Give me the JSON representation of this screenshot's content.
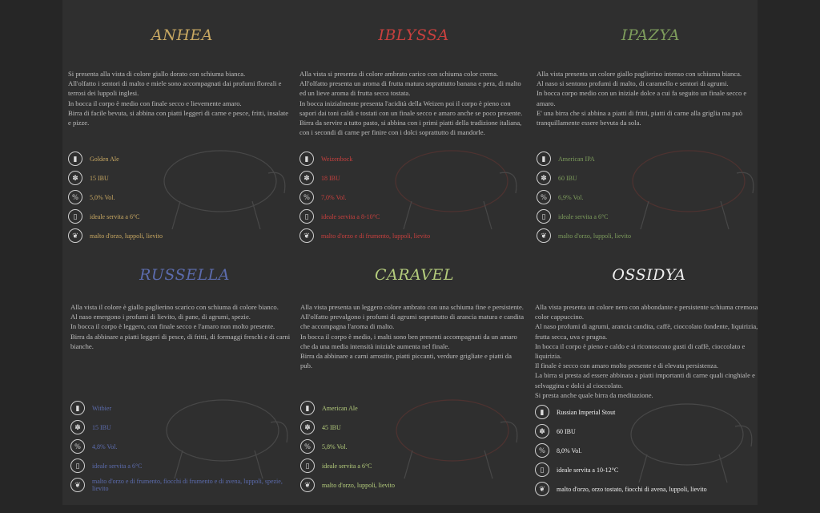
{
  "beers": [
    {
      "name": "ANHEA",
      "color": "#c8a862",
      "description": "Si presenta alla vista di colore giallo dorato con schiuma bianca.\nAll'olfatto i sentori di malto e miele sono accompagnati dai profumi floreali e  terrosi dei luppoli inglesi.\nIn bocca il corpo è medio con finale secco e lievemente amaro.\nBirra di facile bevuta, si abbina con piatti leggeri di carne e pesce, fritti, insalate e pizze.",
      "specs": {
        "style": "Golden Ale",
        "ibu": "15 IBU",
        "abv": "5,0% Vol.",
        "serving": "ideale servita  a 6°C",
        "ingredients": "malto d'orzo, luppoli, lievito"
      }
    },
    {
      "name": "IBLYSSA",
      "color": "#c8403e",
      "description": "Alla vista si presenta di colore ambrato carico con schiuma color crema.\nAll'olfatto presenta un aroma di frutta matura soprattutto banana e pera, di malto ed un lieve aroma di frutta secca tostata.\nIn bocca inizialmente presenta l'acidità della Weizen poi il corpo è pieno con sapori dai toni caldi e tostati con un finale secco e amaro anche se poco presente.\nBirra da servire a tutto pasto, si abbina con i primi piatti della tradizione italiana, con i secondi di carne per finire con i dolci soprattutto di mandorle.",
      "specs": {
        "style": "Weizenbock",
        "ibu": "18 IBU",
        "abv": "7,0% Vol.",
        "serving": "ideale servita a 8-10°C",
        "ingredients": "malto d'orzo e di frumento, luppoli, lievito"
      }
    },
    {
      "name": "IPAZYA",
      "color": "#7d9c5c",
      "description": "Alla vista presenta un  colore giallo paglierino intenso con schiuma bianca.\nAl naso si sentono profumi di malto, di caramello e sentori di agrumi.\nIn bocca corpo medio con un iniziale dolce a cui fa seguito un finale secco e  amaro.\nE' una birra che si abbina a piatti di fritti, piatti di carne alla griglia ma può  tranquillamente essere bevuta da sola.",
      "specs": {
        "style": "American IPA",
        "ibu": "60 IBU",
        "abv": "6,9% Vol.",
        "serving": "ideale servita a 6°C",
        "ingredients": "malto d'orzo, luppoli, lievito"
      }
    },
    {
      "name": "RUSSELLA",
      "color": "#5c6cae",
      "description": "Alla vista il colore è giallo paglierino scarico con schiuma di colore bianco.\nAl naso emergono i profumi di lievito, di pane, di agrumi, spezie.\nIn bocca il corpo è leggero, con finale secco e l'amaro non molto presente.\nBirra da abbinare a piatti leggeri di pesce, di fritti, di formaggi freschi e di carni bianche.",
      "specs": {
        "style": "Witbier",
        "ibu": "15 IBU",
        "abv": "4,8% Vol.",
        "serving": "ideale servita a 6°C",
        "ingredients": "malto d'orzo e di frumento, fiocchi di frumento e di avena, luppoli, spezie, lievito"
      }
    },
    {
      "name": "CARAVEL",
      "color": "#b4cc7c",
      "description": "Alla vista presenta  un leggero colore ambrato con una schiuma fine e persistente.\nAll'olfatto prevalgono i  profumi di agrumi soprattutto di arancia matura e  candita che accompagna l'aroma di malto.\nIn bocca il corpo è  medio, i malti sono ben presenti accompagnati da un amaro che da una media intensità iniziale aumenta nel finale.\nBirra da abbinare a carni arrostite, piatti piccanti, verdure grigliate e piatti da pub.",
      "specs": {
        "style": "American Ale",
        "ibu": "45 IBU",
        "abv": "5,8% Vol.",
        "serving": "ideale servita a 6°C",
        "ingredients": "malto d'orzo, luppoli, lievito"
      }
    },
    {
      "name": "OSSIDYA",
      "color": "#f0f0f0",
      "description": "Alla vista presenta un colore nero con abbondante e persistente schiuma cremosa color cappuccino.\nAl naso profumi di agrumi, arancia candita, caffè, cioccolato fondente, liquirizia,  frutta secca, uva e prugna.\nIn bocca il corpo è pieno e caldo e si  riconoscono gusti di caffè, cioccolato e liquirizia.\nIl finale è secco con amaro molto presente e di elevata persistenza.\nLa birra si presta ad essere abbinata a piatti importanti di carne quali cinghiale e  selvaggina e dolci al cioccolato.\nSi presta anche quale birra da meditazione.",
      "specs": {
        "style": "Russian Imperial Stout",
        "ibu": "60 IBU",
        "abv": "8,0% Vol.",
        "serving": "ideale servita a 10-12°C",
        "ingredients": "malto d'orzo, orzo tostato, fiocchi di avena, luppoli, lievito"
      }
    }
  ],
  "icons": [
    "bottle-icon",
    "hop-icon",
    "percent-icon",
    "glass-icon",
    "leaf-icon"
  ]
}
